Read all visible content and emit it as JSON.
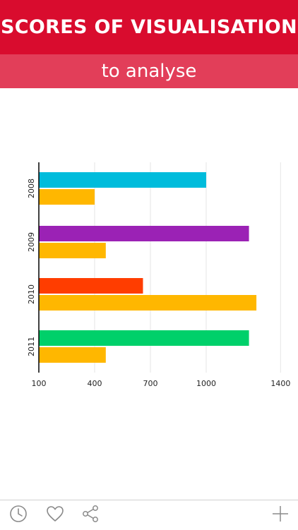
{
  "header": {
    "title": "SCORES OF VISUALISATION",
    "subtitle": "to analyse"
  },
  "colors": {
    "header_bg": "#d90c2e",
    "subheader_bg": "#e23e59",
    "series_orange": "#ffb700",
    "year_2008": "#00bcdc",
    "year_2009": "#9b22b5",
    "year_2010": "#ff3d00",
    "year_2011": "#00d06a",
    "gridline": "#e6e6e6",
    "toolbar_icon": "#8a8a8a"
  },
  "chart_data": {
    "type": "bar",
    "orientation": "horizontal",
    "categories": [
      "2008",
      "2009",
      "2010",
      "2011"
    ],
    "series": [
      {
        "values": [
          1000,
          1230,
          660,
          1230
        ],
        "colors": [
          "#00bcdc",
          "#9b22b5",
          "#ff3d00",
          "#00d06a"
        ]
      },
      {
        "values": [
          400,
          460,
          1270,
          460
        ],
        "colors": [
          "#ffb700",
          "#ffb700",
          "#ffb700",
          "#ffb700"
        ]
      }
    ],
    "xticks": [
      100,
      400,
      700,
      1000,
      1400
    ],
    "xlim": [
      100,
      1400
    ],
    "title": "",
    "xlabel": "",
    "ylabel": "",
    "grid": true
  },
  "toolbar": {
    "icons": [
      "clock-icon",
      "heart-icon",
      "share-icon",
      "plus-icon"
    ]
  }
}
